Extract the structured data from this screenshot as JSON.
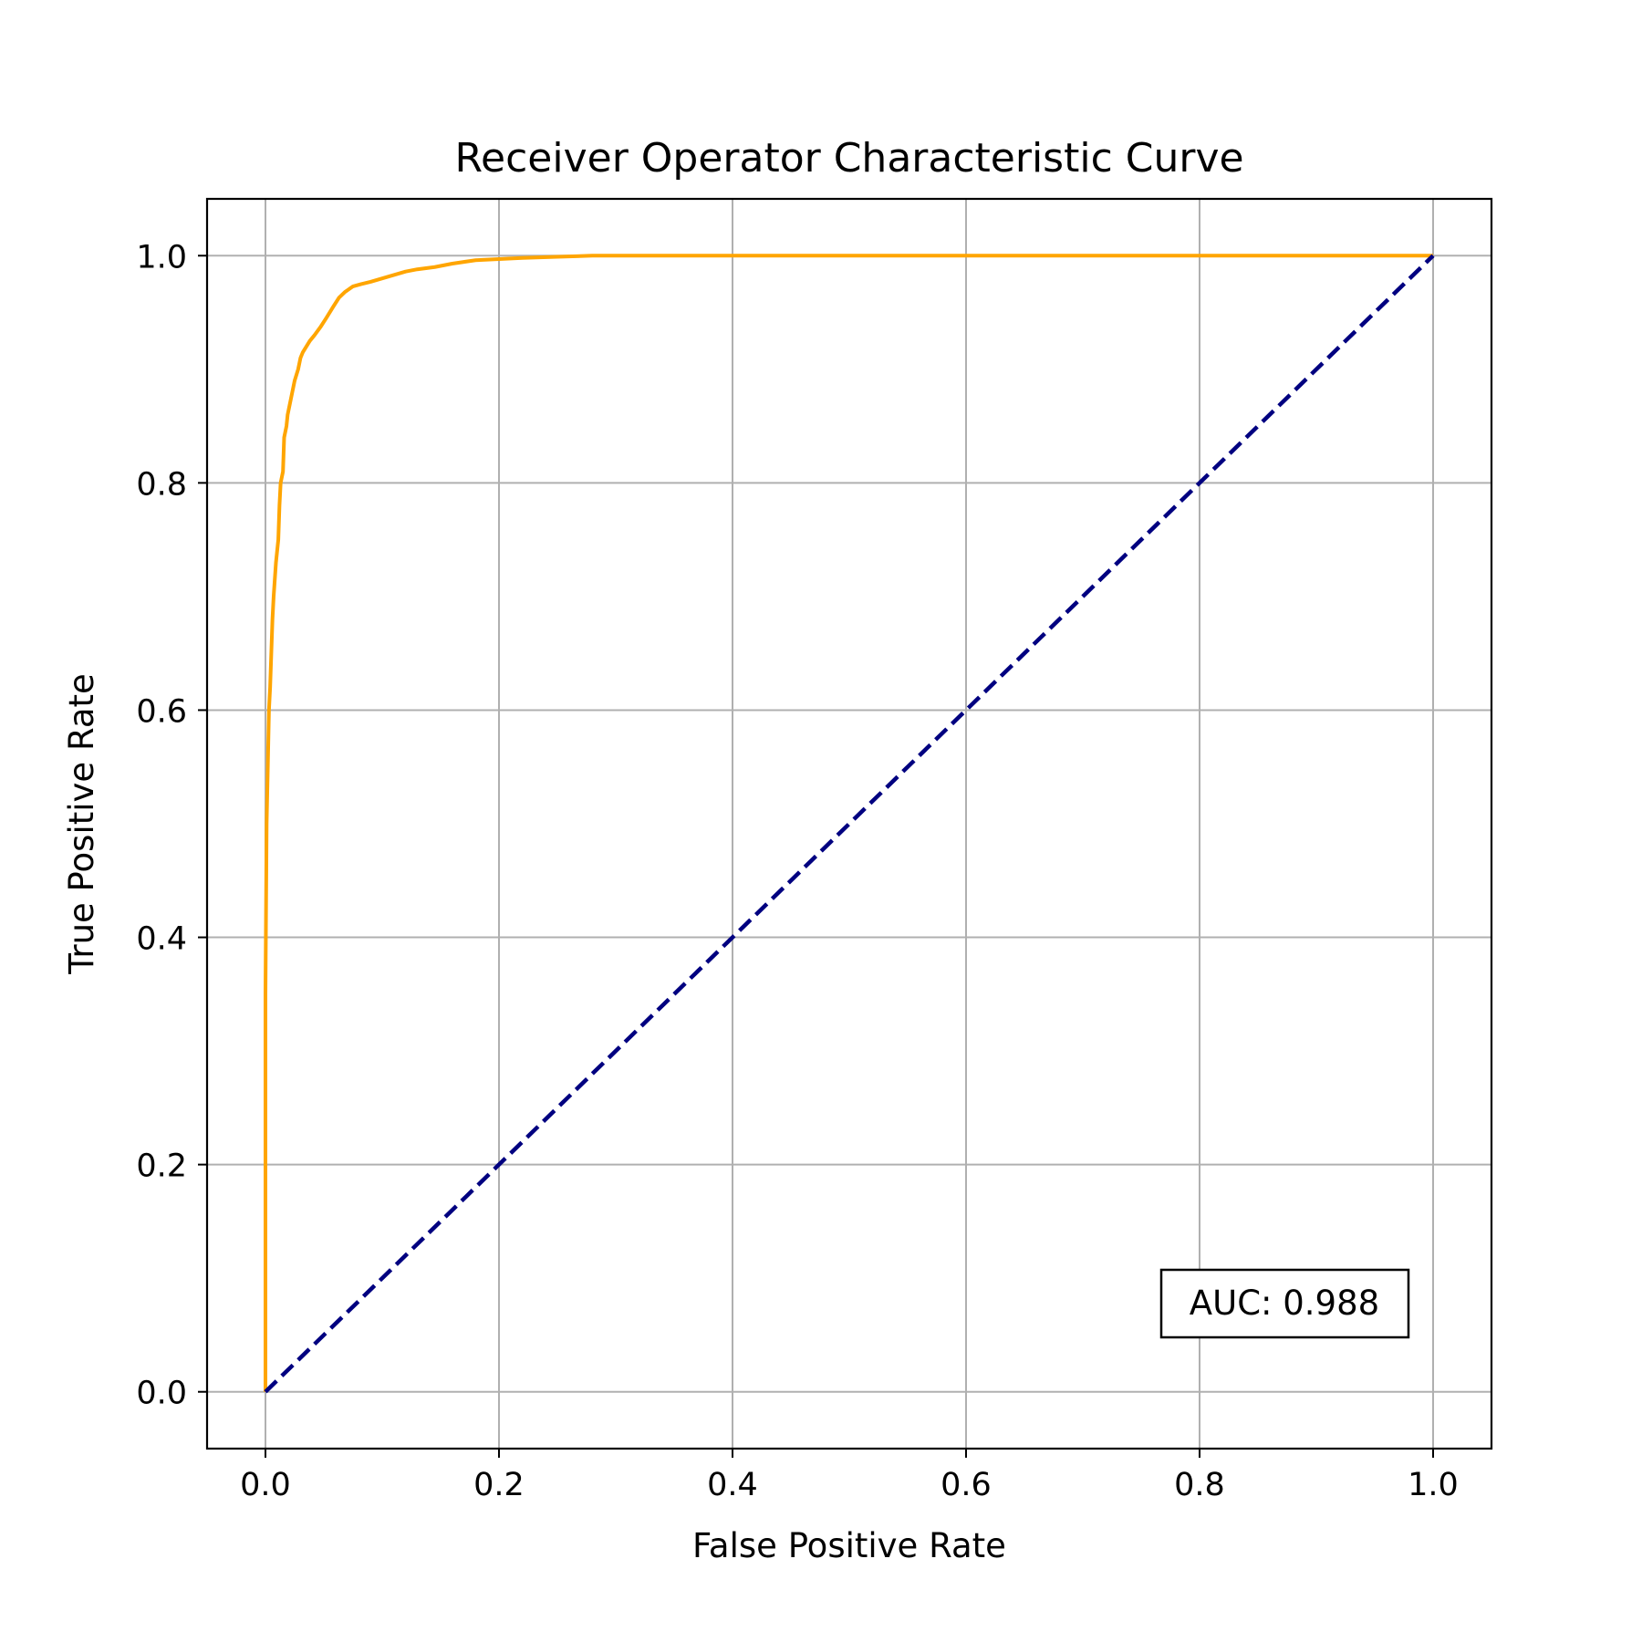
{
  "chart_data": {
    "type": "line",
    "title": "Receiver Operator Characteristic Curve",
    "xlabel": "False Positive Rate",
    "ylabel": "True Positive Rate",
    "xlim": [
      -0.05,
      1.05
    ],
    "ylim": [
      -0.05,
      1.05
    ],
    "xticks": [
      0.0,
      0.2,
      0.4,
      0.6,
      0.8,
      1.0
    ],
    "xtick_labels": [
      "0.0",
      "0.2",
      "0.4",
      "0.6",
      "0.8",
      "1.0"
    ],
    "yticks": [
      0.0,
      0.2,
      0.4,
      0.6,
      0.8,
      1.0
    ],
    "ytick_labels": [
      "0.0",
      "0.2",
      "0.4",
      "0.6",
      "0.8",
      "1.0"
    ],
    "grid": true,
    "legend": "none",
    "annotation": {
      "text": "AUC: 0.988",
      "position": "bottom-right"
    },
    "series": [
      {
        "style": "solid",
        "color": "#ffa500",
        "x": [
          0.0,
          0.0,
          0.001,
          0.002,
          0.003,
          0.004,
          0.005,
          0.006,
          0.007,
          0.009,
          0.011,
          0.012,
          0.013,
          0.015,
          0.016,
          0.018,
          0.019,
          0.021,
          0.023,
          0.025,
          0.028,
          0.03,
          0.032,
          0.035,
          0.038,
          0.042,
          0.047,
          0.052,
          0.058,
          0.063,
          0.068,
          0.075,
          0.082,
          0.09,
          0.1,
          0.11,
          0.12,
          0.13,
          0.145,
          0.16,
          0.18,
          0.2,
          0.22,
          0.25,
          0.28,
          0.3,
          0.4,
          0.5,
          0.6,
          0.7,
          0.8,
          0.9,
          1.0
        ],
        "y": [
          0.0,
          0.35,
          0.5,
          0.55,
          0.6,
          0.62,
          0.65,
          0.68,
          0.7,
          0.73,
          0.75,
          0.78,
          0.8,
          0.81,
          0.84,
          0.85,
          0.86,
          0.87,
          0.88,
          0.89,
          0.9,
          0.91,
          0.915,
          0.92,
          0.925,
          0.93,
          0.937,
          0.945,
          0.955,
          0.963,
          0.968,
          0.973,
          0.975,
          0.977,
          0.98,
          0.983,
          0.986,
          0.988,
          0.99,
          0.993,
          0.996,
          0.997,
          0.998,
          0.999,
          1.0,
          1.0,
          1.0,
          1.0,
          1.0,
          1.0,
          1.0,
          1.0,
          1.0
        ]
      },
      {
        "style": "dashed",
        "color": "#000080",
        "x": [
          0.0,
          1.0
        ],
        "y": [
          0.0,
          1.0
        ]
      }
    ]
  }
}
